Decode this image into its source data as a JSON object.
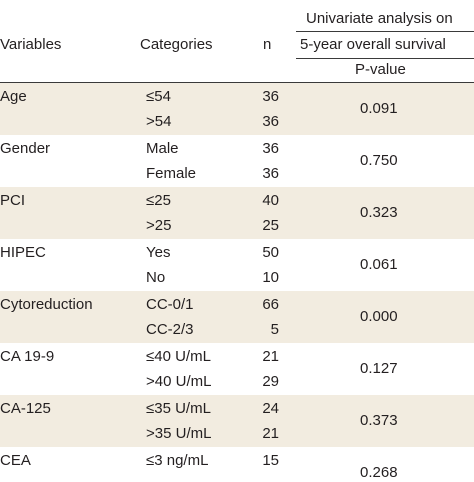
{
  "header": {
    "variables": "Variables",
    "categories": "Categories",
    "n": "n",
    "analysis_line1": "Univariate analysis on",
    "analysis_line2": "5-year overall survival",
    "pvalue": "P-value"
  },
  "rows": [
    {
      "variable": "Age",
      "categories": [
        "≤54",
        ">54"
      ],
      "n": [
        "36",
        "36"
      ],
      "p": "0.091",
      "shaded": true
    },
    {
      "variable": "Gender",
      "categories": [
        "Male",
        "Female"
      ],
      "n": [
        "36",
        "36"
      ],
      "p": "0.750",
      "shaded": false
    },
    {
      "variable": "PCI",
      "categories": [
        "≤25",
        ">25"
      ],
      "n": [
        "40",
        "25"
      ],
      "p": "0.323",
      "shaded": true
    },
    {
      "variable": "HIPEC",
      "categories": [
        "Yes",
        "No"
      ],
      "n": [
        "50",
        "10"
      ],
      "p": "0.061",
      "shaded": false
    },
    {
      "variable": "Cytoreduction",
      "categories": [
        "CC-0/1",
        "CC-2/3"
      ],
      "n": [
        "66",
        "5"
      ],
      "p": "0.000",
      "shaded": true
    },
    {
      "variable": "CA 19-9",
      "categories": [
        "≤40 U/mL",
        ">40 U/mL"
      ],
      "n": [
        "21",
        "29"
      ],
      "p": "0.127",
      "shaded": false
    },
    {
      "variable": "CA-125",
      "categories": [
        "≤35 U/mL",
        ">35 U/mL"
      ],
      "n": [
        "24",
        "21"
      ],
      "p": "0.373",
      "shaded": true
    },
    {
      "variable": "CEA",
      "categories": [
        "≤3 ng/mL",
        ""
      ],
      "n": [
        "15",
        ""
      ],
      "p": "0.268",
      "shaded": false
    }
  ],
  "colors": {
    "band": "#f2ece0",
    "rule": "#3a3a3a",
    "text": "#231f20"
  }
}
